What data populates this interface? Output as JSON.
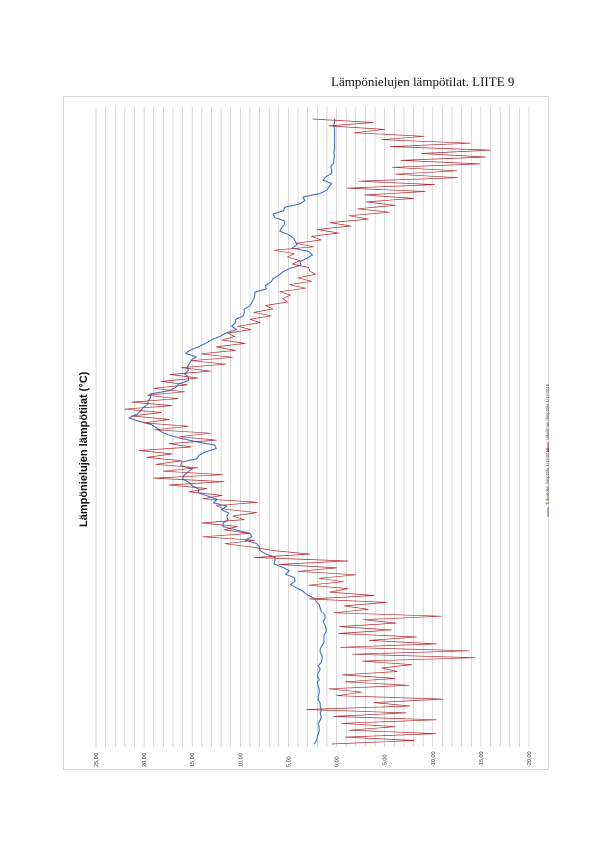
{
  "page": {
    "header": "Lämpönielujen lämpötilat. LIITE 9"
  },
  "colors": {
    "tulo": "#4a72b8",
    "ulko": "#b32a2f",
    "grid": "#bfbfbf"
  },
  "chart_data": {
    "type": "line",
    "orientation": "rotated-90-counterclockwise",
    "title": "Lämpönielujen lämpötilat (°C)",
    "ylim": [
      -20,
      25
    ],
    "y_ticks": [
      "-20,00",
      "-15,00",
      "-10,00",
      "-5,00",
      "0,00",
      "5,00",
      "10,00",
      "15,00",
      "20,00",
      "25,00"
    ],
    "grid": true,
    "legend_position": "right",
    "series": [
      {
        "name": "Tuloveden lämpötila 1/12/2015",
        "color": "#4a72b8",
        "values": [
          2.3,
          2.1,
          2.0,
          1.9,
          1.8,
          1.8,
          1.9,
          1.7,
          1.6,
          1.7,
          1.6,
          1.7,
          1.7,
          1.9,
          1.9,
          1.8,
          1.8,
          1.9,
          2.0,
          1.8,
          2.0,
          1.9,
          1.7,
          1.9,
          1.6,
          1.5,
          1.5,
          1.7,
          1.7,
          1.5,
          1.3,
          1.3,
          1.3,
          1.1,
          1.1,
          1.2,
          1.4,
          1.2,
          1.2,
          1.6,
          1.7,
          1.8,
          2.1,
          2.4,
          3.1,
          3.5,
          4.2,
          4.8,
          4.3,
          4.4,
          5.3,
          4.9,
          5.6,
          6.5,
          6.4,
          6.4,
          7.4,
          8.0,
          8.0,
          8.3,
          9.5,
          8.8,
          9.0,
          10.4,
          11.8,
          11.8,
          11.3,
          11.4,
          11.2,
          12.0,
          11.4,
          12.8,
          12.4,
          13.4,
          14.4,
          14.3,
          15.0,
          15.3,
          16.0,
          15.9,
          15.5,
          15.0,
          16.2,
          16.1,
          14.5,
          14.3,
          13.6,
          12.5,
          12.7,
          14.6,
          16.2,
          17.5,
          18.3,
          18.7,
          19.2,
          20.5,
          21.6,
          20.8,
          20.4,
          20.1,
          19.6,
          19.6,
          19.3,
          19.4,
          17.4,
          16.7,
          16.4,
          15.4,
          15.4,
          15.8,
          15.4,
          15.5,
          15.3,
          15.1,
          14.6,
          15.7,
          15.2,
          14.3,
          13.6,
          13.0,
          12.1,
          11.5,
          10.4,
          10.9,
          10.5,
          10.5,
          9.7,
          9.6,
          9.6,
          9.0,
          8.8,
          8.6,
          8.5,
          8.5,
          7.3,
          7.4,
          6.8,
          6.6,
          6.0,
          5.6,
          4.9,
          3.7,
          3.8,
          3.1,
          2.5,
          2.9,
          4.6,
          4.1,
          4.3,
          4.5,
          5.0,
          5.9,
          5.7,
          5.4,
          5.4,
          6.4,
          6.6,
          5.5,
          5.4,
          3.8,
          3.3,
          3.5,
          1.8,
          1.0,
          0.8,
          0.5,
          1.4,
          1.1,
          0.5,
          0.5,
          0.6,
          0.3,
          0.3,
          0.2,
          0.3,
          0.2,
          0.2,
          0.2,
          0.2,
          0.2,
          0.2,
          0.2,
          0.3,
          0.2,
          0.2
        ]
      },
      {
        "name": "Ulkoilman lämpötila 1/12/2015",
        "color": "#b32a2f",
        "values": [
          0.5,
          -8.1,
          -0.9,
          -10.3,
          -1.3,
          -6.1,
          -0.5,
          -10.4,
          0.3,
          -7.2,
          3.1,
          -7.6,
          -3.9,
          -11.1,
          0.0,
          -2.6,
          0.8,
          -7.5,
          -0.9,
          -6.1,
          -0.6,
          -6.3,
          -4.7,
          -7.8,
          -2.7,
          -14.4,
          -1.6,
          -13.8,
          -0.4,
          -10.4,
          -3.4,
          -8.3,
          -0.2,
          -5.7,
          -0.3,
          -6.2,
          -2.8,
          -10.9,
          0.3,
          -3.3,
          -0.8,
          -5.2,
          2.8,
          -3.9,
          0.7,
          -1.2,
          2.9,
          -0.7,
          1.8,
          -2.0,
          4.0,
          0.0,
          6.0,
          -1.2,
          8.5,
          2.8,
          6.5,
          8.7,
          11.6,
          8.5,
          13.9,
          9.0,
          11.7,
          10.3,
          14.0,
          9.6,
          10.8,
          8.3,
          11.6,
          12.5,
          8.2,
          13.9,
          11.9,
          15.3,
          13.5,
          17.4,
          11.7,
          19.0,
          11.8,
          18.0,
          14.4,
          18.8,
          16.1,
          19.7,
          17.1,
          20.5,
          15.1,
          17.4,
          12.5,
          16.3,
          13.1,
          18.9,
          15.4,
          20.0,
          17.4,
          21.3,
          18.2,
          22.0,
          17.1,
          21.3,
          16.5,
          19.7,
          15.8,
          19.0,
          15.5,
          18.2,
          14.4,
          17.3,
          13.1,
          16.1,
          11.5,
          15.1,
          10.8,
          14.1,
          10.5,
          12.5,
          9.5,
          11.9,
          10.6,
          11.3,
          8.9,
          10.3,
          7.9,
          9.0,
          6.8,
          8.6,
          6.6,
          7.4,
          5.1,
          5.6,
          4.8,
          5.9,
          3.2,
          4.9,
          2.6,
          4.0,
          2.2,
          2.8,
          2.9,
          4.6,
          3.8,
          5.1,
          4.4,
          6.5,
          2.4,
          4.2,
          1.6,
          2.6,
          -0.2,
          2.0,
          -1.5,
          0.7,
          -3.3,
          -1.3,
          -5.5,
          -2.2,
          -6.1,
          -3.1,
          -8.0,
          -2.9,
          -9.2,
          -1.1,
          -10.2,
          -2.3,
          -12.6,
          -6.1,
          -12.5,
          -5.8,
          -14.9,
          -6.7,
          -15.5,
          -8.8,
          -16.0,
          -5.6,
          -13.9,
          -4.7,
          -9.1,
          -1.8,
          -5.0,
          0.8,
          -3.8,
          2.5
        ]
      }
    ]
  }
}
